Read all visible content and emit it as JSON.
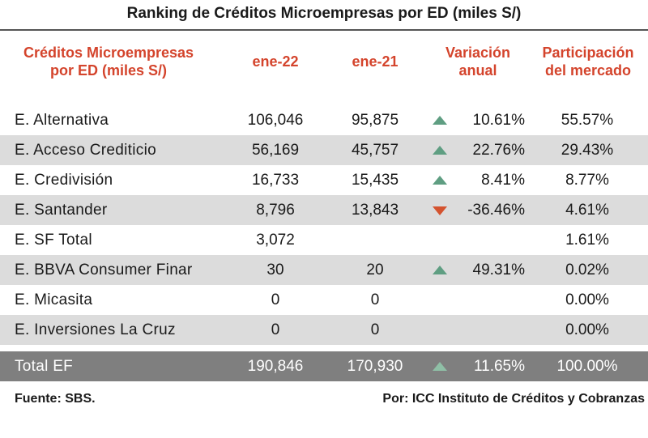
{
  "title": "Ranking de Créditos Microempresas por ED (miles S/)",
  "headers": {
    "name_line1": "Créditos Microempresas",
    "name_line2": "por ED (miles S/)",
    "col_current": "ene-22",
    "col_previous": "ene-21",
    "variation_line1": "Variación",
    "variation_line2": "anual",
    "share_line1": "Participación",
    "share_line2": "del mercado"
  },
  "rows": [
    {
      "name": "E. Alternativa",
      "ene22": "106,046",
      "ene21": "95,875",
      "trend": "up",
      "variation": "10.61%",
      "share": "55.57%"
    },
    {
      "name": "E. Acceso Crediticio",
      "ene22": "56,169",
      "ene21": "45,757",
      "trend": "up",
      "variation": "22.76%",
      "share": "29.43%"
    },
    {
      "name": "E. Credivisión",
      "ene22": "16,733",
      "ene21": "15,435",
      "trend": "up",
      "variation": "8.41%",
      "share": "8.77%"
    },
    {
      "name": "E. Santander",
      "ene22": "8,796",
      "ene21": "13,843",
      "trend": "down",
      "variation": "-36.46%",
      "share": "4.61%"
    },
    {
      "name": "E. SF Total",
      "ene22": "3,072",
      "ene21": "",
      "trend": "",
      "variation": "",
      "share": "1.61%"
    },
    {
      "name": "E. BBVA Consumer Finar",
      "ene22": "30",
      "ene21": "20",
      "trend": "up",
      "variation": "49.31%",
      "share": "0.02%"
    },
    {
      "name": "E. Micasita",
      "ene22": "0",
      "ene21": "0",
      "trend": "",
      "variation": "",
      "share": "0.00%"
    },
    {
      "name": "E. Inversiones La Cruz",
      "ene22": "0",
      "ene21": "0",
      "trend": "",
      "variation": "",
      "share": "0.00%"
    }
  ],
  "total": {
    "name": "Total EF",
    "ene22": "190,846",
    "ene21": "170,930",
    "trend": "up",
    "variation": "11.65%",
    "share": "100.00%"
  },
  "footer": {
    "source": "Fuente: SBS.",
    "credit": "Por: ICC Instituto de Créditos y Cobranzas"
  },
  "colors": {
    "header_red": "#d4442c",
    "up_green": "#5f9e82",
    "down_red": "#d4532f",
    "row_shade": "#dcdcdc",
    "total_bg": "#7f7f7f"
  },
  "icons": {
    "up": "triangle-up-icon",
    "down": "triangle-down-icon"
  }
}
